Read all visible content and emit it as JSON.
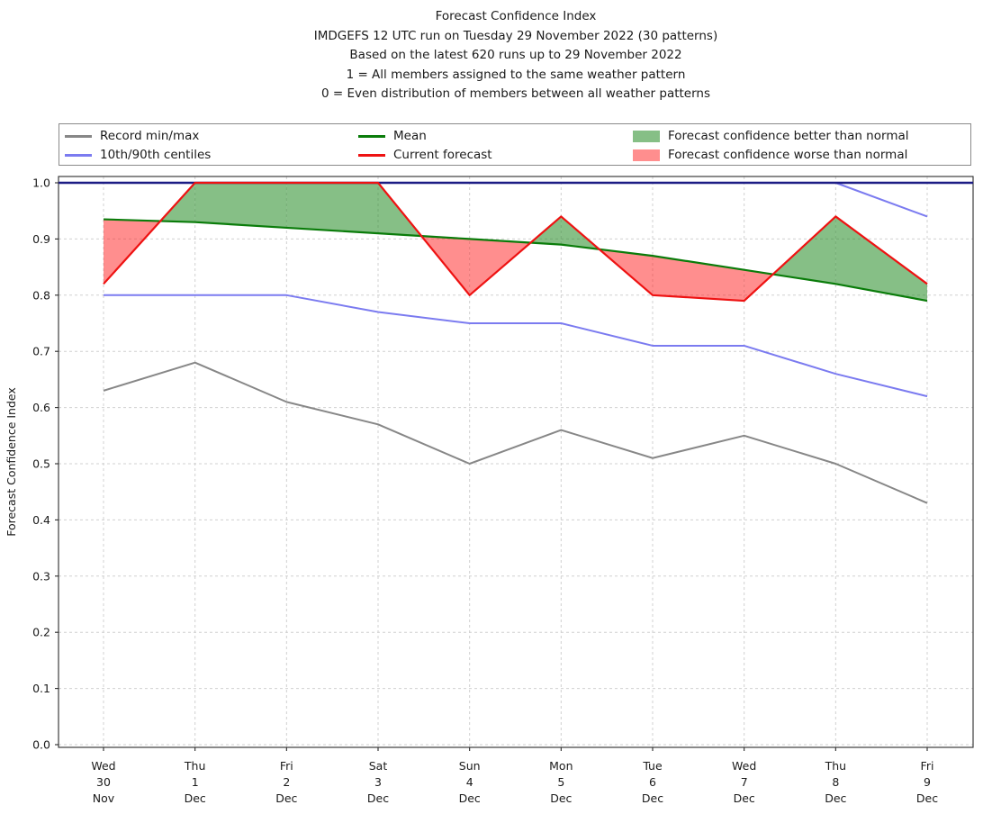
{
  "title": {
    "lines": [
      "Forecast Confidence Index",
      "IMDGEFS 12 UTC run on Tuesday 29 November 2022 (30 patterns)",
      "Based on the latest 620 runs up to 29 November 2022",
      "1 = All members assigned to the same weather pattern",
      "0 = Even distribution of members between all weather patterns"
    ]
  },
  "legend": {
    "items": [
      {
        "label": "Record min/max",
        "type": "line",
        "color": "#878787"
      },
      {
        "label": "10th/90th centiles",
        "type": "line",
        "color": "#7b7bf0"
      },
      {
        "label": "Mean",
        "type": "line",
        "color": "#0a7c0a"
      },
      {
        "label": "Current forecast",
        "type": "line",
        "color": "#ee1212"
      },
      {
        "label": "Forecast confidence better than normal",
        "type": "patch",
        "color": "rgba(34,139,34,0.55)"
      },
      {
        "label": "Forecast confidence worse than normal",
        "type": "patch",
        "color": "rgba(255,30,30,0.5)"
      }
    ]
  },
  "chart_data": {
    "type": "line",
    "title": "Forecast Confidence Index",
    "ylabel": "Forecast Confidence Index",
    "ylim": [
      0.0,
      1.0
    ],
    "ytick_step": 0.1,
    "grid": true,
    "legend_position": "top",
    "categories": [
      [
        "Wed",
        "30",
        "Nov"
      ],
      [
        "Thu",
        "1",
        "Dec"
      ],
      [
        "Fri",
        "2",
        "Dec"
      ],
      [
        "Sat",
        "3",
        "Dec"
      ],
      [
        "Sun",
        "4",
        "Dec"
      ],
      [
        "Mon",
        "5",
        "Dec"
      ],
      [
        "Tue",
        "6",
        "Dec"
      ],
      [
        "Wed",
        "7",
        "Dec"
      ],
      [
        "Thu",
        "8",
        "Dec"
      ],
      [
        "Fri",
        "9",
        "Dec"
      ]
    ],
    "series": [
      {
        "name": "record_max",
        "label": "Record min/max",
        "color": "#878787",
        "width": 2,
        "values": [
          1.0,
          1.0,
          1.0,
          1.0,
          1.0,
          1.0,
          1.0,
          1.0,
          1.0,
          1.0
        ]
      },
      {
        "name": "record_min",
        "label": "Record min/max",
        "color": "#878787",
        "width": 2,
        "values": [
          0.63,
          0.68,
          0.61,
          0.57,
          0.5,
          0.56,
          0.51,
          0.55,
          0.5,
          0.43
        ]
      },
      {
        "name": "90th_centile",
        "label": "10th/90th centiles",
        "color": "#7b7bf0",
        "width": 2,
        "values": [
          1.0,
          1.0,
          1.0,
          1.0,
          1.0,
          1.0,
          1.0,
          1.0,
          1.0,
          0.94
        ]
      },
      {
        "name": "10th_centile",
        "label": "10th/90th centiles",
        "color": "#7b7bf0",
        "width": 2,
        "values": [
          0.8,
          0.8,
          0.8,
          0.77,
          0.75,
          0.75,
          0.71,
          0.71,
          0.66,
          0.62
        ]
      },
      {
        "name": "mean",
        "label": "Mean",
        "color": "#0a7c0a",
        "width": 2.2,
        "values": [
          0.935,
          0.93,
          0.92,
          0.91,
          0.9,
          0.89,
          0.87,
          0.845,
          0.82,
          0.79
        ]
      },
      {
        "name": "current_forecast",
        "label": "Current forecast",
        "color": "#ee1212",
        "width": 2.2,
        "values": [
          0.82,
          1.0,
          1.0,
          1.0,
          0.8,
          0.94,
          0.8,
          0.79,
          0.94,
          0.82
        ]
      }
    ],
    "reference_line": {
      "value": 1.0,
      "color": "#1c1c84",
      "width": 2.4
    },
    "fill_between": {
      "upper": "current_forecast",
      "baseline": "mean",
      "better_color": "rgba(34,139,34,0.55)",
      "worse_color": "rgba(255,30,30,0.5)",
      "better_meaning": "Forecast confidence better than normal",
      "worse_meaning": "Forecast confidence worse than normal"
    }
  }
}
